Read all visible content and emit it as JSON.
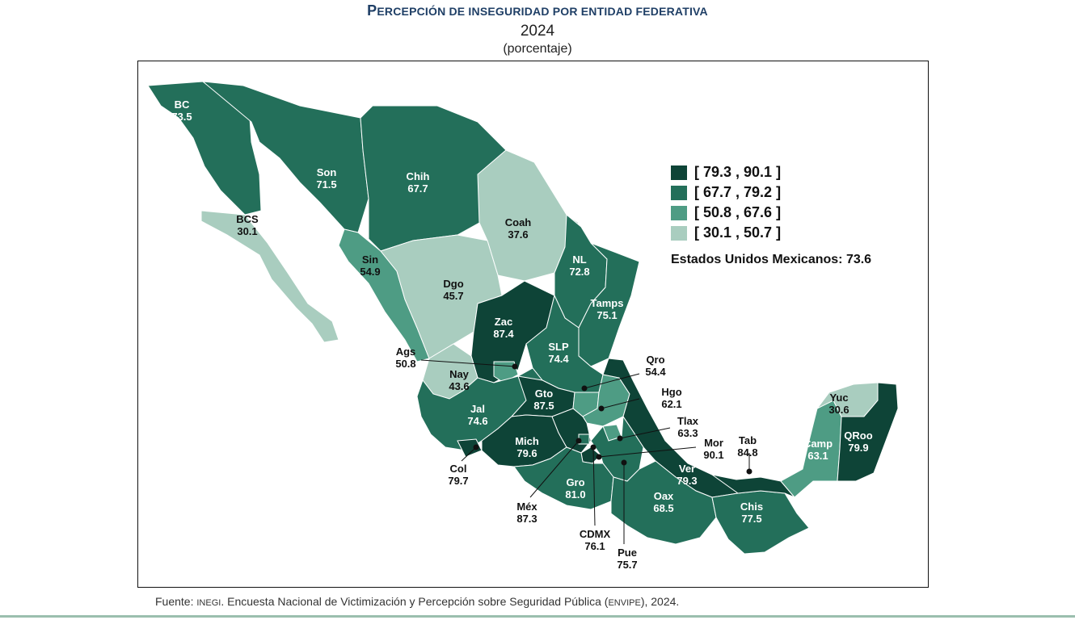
{
  "title": {
    "lead": "P",
    "rest": "ERCEPCIÓN DE INSEGURIDAD POR ENTIDAD FEDERATIVA"
  },
  "year": "2024",
  "unit": "(porcentaje)",
  "colors": {
    "c1": "#0e4437",
    "c2": "#236f5a",
    "c3": "#4e9c84",
    "c4": "#a9cdbf",
    "background": "#ffffff"
  },
  "legend": [
    {
      "label": "[ 79.3 , 90.1 ]",
      "color": "#0e4437"
    },
    {
      "label": "[ 67.7 , 79.2 ]",
      "color": "#236f5a"
    },
    {
      "label": "[ 50.8 , 67.6 ]",
      "color": "#4e9c84"
    },
    {
      "label": "[ 30.1 , 50.7 ]",
      "color": "#a9cdbf"
    }
  ],
  "national": "Estados Unidos Mexicanos:  73.6",
  "states": [
    {
      "abbr": "BC",
      "value": "73.5"
    },
    {
      "abbr": "Son",
      "value": "71.5"
    },
    {
      "abbr": "Chih",
      "value": "67.7"
    },
    {
      "abbr": "BCS",
      "value": "30.1"
    },
    {
      "abbr": "Coah",
      "value": "37.6"
    },
    {
      "abbr": "Sin",
      "value": "54.9"
    },
    {
      "abbr": "NL",
      "value": "72.8"
    },
    {
      "abbr": "Dgo",
      "value": "45.7"
    },
    {
      "abbr": "Tamps",
      "value": "75.1"
    },
    {
      "abbr": "Zac",
      "value": "87.4"
    },
    {
      "abbr": "SLP",
      "value": "74.4"
    },
    {
      "abbr": "Ags",
      "value": "50.8"
    },
    {
      "abbr": "Qro",
      "value": "54.4"
    },
    {
      "abbr": "Nay",
      "value": "43.6"
    },
    {
      "abbr": "Gto",
      "value": "87.5"
    },
    {
      "abbr": "Hgo",
      "value": "62.1"
    },
    {
      "abbr": "Jal",
      "value": "74.6"
    },
    {
      "abbr": "Tlax",
      "value": "63.3"
    },
    {
      "abbr": "Mich",
      "value": "79.6"
    },
    {
      "abbr": "Mor",
      "value": "90.1"
    },
    {
      "abbr": "Tab",
      "value": "84.8"
    },
    {
      "abbr": "Col",
      "value": "79.7"
    },
    {
      "abbr": "Gro",
      "value": "81.0"
    },
    {
      "abbr": "Ver",
      "value": "79.3"
    },
    {
      "abbr": "Méx",
      "value": "87.3"
    },
    {
      "abbr": "Oax",
      "value": "68.5"
    },
    {
      "abbr": "Chis",
      "value": "77.5"
    },
    {
      "abbr": "CDMX",
      "value": "76.1"
    },
    {
      "abbr": "Pue",
      "value": "75.7"
    },
    {
      "abbr": "Yuc",
      "value": "30.6"
    },
    {
      "abbr": "Camp",
      "value": "63.1"
    },
    {
      "abbr": "QRoo",
      "value": "79.9"
    }
  ],
  "footer": {
    "prefix": "Fuente: ",
    "org": "INEGI",
    "middle": ". Encuesta Nacional de Victimización y Percepción sobre Seguridad Pública (",
    "survey": "ENVIPE",
    "suffix": "), 2024."
  }
}
